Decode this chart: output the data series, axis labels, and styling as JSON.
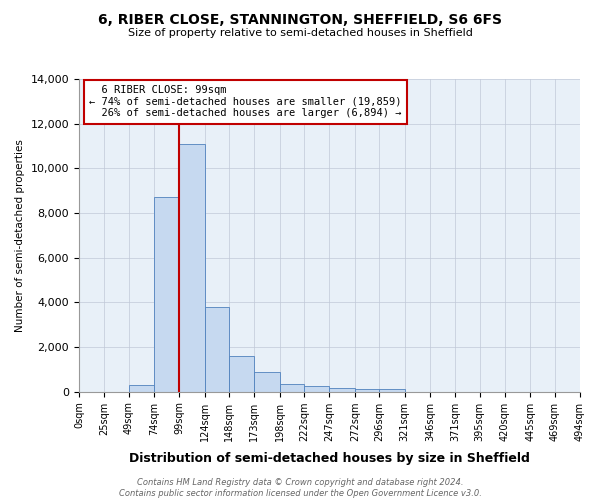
{
  "title": "6, RIBER CLOSE, STANNINGTON, SHEFFIELD, S6 6FS",
  "subtitle": "Size of property relative to semi-detached houses in Sheffield",
  "xlabel": "Distribution of semi-detached houses by size in Sheffield",
  "ylabel": "Number of semi-detached properties",
  "property_value": 99,
  "property_label": "6 RIBER CLOSE: 99sqm",
  "pct_smaller": 74,
  "pct_larger": 26,
  "count_smaller": "19,859",
  "count_larger": "6,894",
  "bin_edges": [
    0,
    25,
    49,
    74,
    99,
    124,
    148,
    173,
    198,
    222,
    247,
    272,
    296,
    321,
    346,
    371,
    395,
    420,
    445,
    469,
    494
  ],
  "bin_labels": [
    "0sqm",
    "25sqm",
    "49sqm",
    "74sqm",
    "99sqm",
    "124sqm",
    "148sqm",
    "173sqm",
    "198sqm",
    "222sqm",
    "247sqm",
    "272sqm",
    "296sqm",
    "321sqm",
    "346sqm",
    "371sqm",
    "395sqm",
    "420sqm",
    "445sqm",
    "469sqm",
    "494sqm"
  ],
  "bar_heights": [
    0,
    0,
    300,
    8700,
    11100,
    3800,
    1600,
    900,
    350,
    250,
    150,
    100,
    100,
    0,
    0,
    0,
    0,
    0,
    0,
    0
  ],
  "bar_color": "#c6d9f0",
  "bar_edge_color": "#4f81bd",
  "vline_color": "#c00000",
  "vline_x": 99,
  "ylim": [
    0,
    14000
  ],
  "yticks": [
    0,
    2000,
    4000,
    6000,
    8000,
    10000,
    12000,
    14000
  ],
  "grid_color": "#c0c8d8",
  "annotation_box_edge": "#c00000",
  "footer": "Contains HM Land Registry data © Crown copyright and database right 2024.\nContains public sector information licensed under the Open Government Licence v3.0.",
  "fig_width": 6.0,
  "fig_height": 5.0,
  "bg_color": "#ffffff",
  "axes_bg_color": "#e8f0f8"
}
